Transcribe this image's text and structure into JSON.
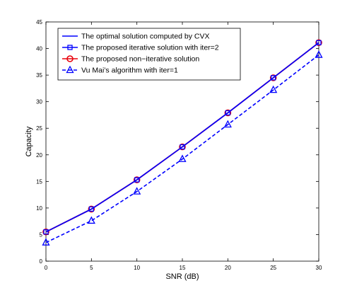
{
  "chart_data": {
    "type": "line",
    "xlabel": "SNR (dB)",
    "ylabel": "Capacity",
    "xlim": [
      0,
      30
    ],
    "ylim": [
      0,
      45
    ],
    "x_ticks": [
      0,
      5,
      10,
      15,
      20,
      25,
      30
    ],
    "y_ticks": [
      0,
      5,
      10,
      15,
      20,
      25,
      30,
      35,
      40,
      45
    ],
    "grid": false,
    "legend_position": "top-left",
    "x": [
      0,
      5,
      10,
      15,
      20,
      25,
      30
    ],
    "series": [
      {
        "name": "The optimal solution computed by CVX",
        "values": [
          5.5,
          9.8,
          15.3,
          21.5,
          27.9,
          34.5,
          41.1
        ],
        "color": "#0000ff",
        "line": "solid",
        "marker": "none"
      },
      {
        "name": "The proposed iterative solution with iter=2",
        "values": [
          5.5,
          9.8,
          15.3,
          21.5,
          27.9,
          34.5,
          41.1
        ],
        "color": "#0000ff",
        "line": "solid",
        "marker": "square"
      },
      {
        "name": "The proposed non−iterative solution",
        "values": [
          5.5,
          9.8,
          15.3,
          21.5,
          27.9,
          34.5,
          41.1
        ],
        "color": "#e8000b",
        "line": "solid",
        "marker": "circle"
      },
      {
        "name": "Vu Mai’s algorithm with iter=1",
        "values": [
          3.5,
          7.6,
          13.1,
          19.2,
          25.7,
          32.2,
          38.8
        ],
        "color": "#0000ff",
        "line": "dashed",
        "marker": "triangle"
      }
    ]
  }
}
